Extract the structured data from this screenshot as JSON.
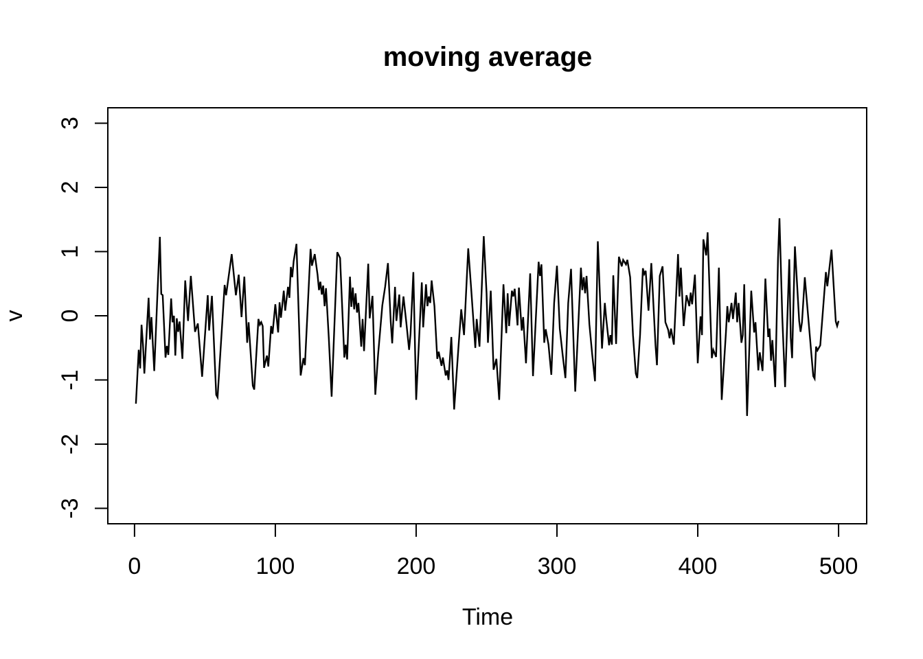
{
  "figure": {
    "background": "#ffffff",
    "foreground": "#000000"
  },
  "chart_data": {
    "type": "line",
    "title": "moving average",
    "xlabel": "Time",
    "ylabel": "v",
    "grid": false,
    "legend": "none",
    "line_color": "#000000",
    "xlim": [
      1,
      500
    ],
    "ylim": [
      -3,
      3
    ],
    "x_ticks": [
      0,
      100,
      200,
      300,
      400,
      500
    ],
    "y_ticks": [
      -3,
      -2,
      -1,
      0,
      1,
      2,
      3
    ],
    "series": [
      {
        "name": "v",
        "points": [
          [
            1,
            -1.37
          ],
          [
            3,
            -0.53
          ],
          [
            4,
            -0.82
          ],
          [
            5,
            -0.14
          ],
          [
            6,
            -0.45
          ],
          [
            7,
            -0.9
          ],
          [
            10,
            0.28
          ],
          [
            11,
            -0.37
          ],
          [
            12,
            -0.02
          ],
          [
            14,
            -0.86
          ],
          [
            16,
            0.2
          ],
          [
            18,
            1.23
          ],
          [
            19,
            0.34
          ],
          [
            20,
            0.32
          ],
          [
            22,
            -0.65
          ],
          [
            23,
            -0.47
          ],
          [
            24,
            -0.61
          ],
          [
            26,
            0.27
          ],
          [
            27,
            -0.1
          ],
          [
            28,
            0.0
          ],
          [
            29,
            -0.62
          ],
          [
            30,
            -0.04
          ],
          [
            31,
            -0.25
          ],
          [
            32,
            -0.09
          ],
          [
            34,
            -0.67
          ],
          [
            36,
            0.55
          ],
          [
            38,
            -0.08
          ],
          [
            40,
            0.62
          ],
          [
            43,
            -0.25
          ],
          [
            45,
            -0.12
          ],
          [
            48,
            -0.95
          ],
          [
            52,
            0.32
          ],
          [
            53,
            -0.23
          ],
          [
            55,
            0.31
          ],
          [
            58,
            -1.23
          ],
          [
            59,
            -1.27
          ],
          [
            64,
            0.48
          ],
          [
            65,
            0.32
          ],
          [
            69,
            0.96
          ],
          [
            72,
            0.32
          ],
          [
            74,
            0.64
          ],
          [
            76,
            -0.02
          ],
          [
            78,
            0.61
          ],
          [
            80,
            -0.42
          ],
          [
            81,
            -0.1
          ],
          [
            84,
            -1.09
          ],
          [
            85,
            -1.15
          ],
          [
            88,
            -0.05
          ],
          [
            89,
            -0.14
          ],
          [
            90,
            -0.1
          ],
          [
            91,
            -0.16
          ],
          [
            92,
            -0.81
          ],
          [
            94,
            -0.62
          ],
          [
            95,
            -0.79
          ],
          [
            97,
            -0.16
          ],
          [
            98,
            -0.28
          ],
          [
            100,
            0.18
          ],
          [
            102,
            -0.26
          ],
          [
            103,
            0.21
          ],
          [
            104,
            -0.03
          ],
          [
            106,
            0.39
          ],
          [
            107,
            0.08
          ],
          [
            109,
            0.45
          ],
          [
            110,
            0.28
          ],
          [
            111,
            0.76
          ],
          [
            112,
            0.6
          ],
          [
            113,
            0.85
          ],
          [
            115,
            1.12
          ],
          [
            118,
            -0.93
          ],
          [
            120,
            -0.66
          ],
          [
            121,
            -0.77
          ],
          [
            125,
            1.04
          ],
          [
            126,
            0.78
          ],
          [
            128,
            0.96
          ],
          [
            130,
            0.64
          ],
          [
            131,
            0.4
          ],
          [
            132,
            0.53
          ],
          [
            133,
            0.33
          ],
          [
            134,
            0.47
          ],
          [
            135,
            0.15
          ],
          [
            136,
            0.43
          ],
          [
            138,
            -0.35
          ],
          [
            140,
            -1.26
          ],
          [
            144,
            0.99
          ],
          [
            146,
            0.9
          ],
          [
            149,
            -0.65
          ],
          [
            150,
            -0.45
          ],
          [
            151,
            -0.68
          ],
          [
            153,
            0.61
          ],
          [
            154,
            0.14
          ],
          [
            155,
            0.44
          ],
          [
            156,
            0.1
          ],
          [
            157,
            0.35
          ],
          [
            158,
            0.05
          ],
          [
            159,
            0.2
          ],
          [
            161,
            -0.48
          ],
          [
            162,
            -0.05
          ],
          [
            163,
            -0.55
          ],
          [
            166,
            0.81
          ],
          [
            167,
            -0.04
          ],
          [
            169,
            0.31
          ],
          [
            171,
            -1.23
          ],
          [
            173,
            -0.6
          ],
          [
            176,
            0.16
          ],
          [
            178,
            0.45
          ],
          [
            180,
            0.82
          ],
          [
            182,
            -0.1
          ],
          [
            183,
            -0.43
          ],
          [
            185,
            0.45
          ],
          [
            186,
            -0.08
          ],
          [
            188,
            0.33
          ],
          [
            189,
            -0.18
          ],
          [
            191,
            0.3
          ],
          [
            193,
            -0.1
          ],
          [
            195,
            -0.53
          ],
          [
            196,
            -0.28
          ],
          [
            198,
            0.68
          ],
          [
            200,
            -1.31
          ],
          [
            204,
            0.52
          ],
          [
            205,
            -0.18
          ],
          [
            207,
            0.49
          ],
          [
            208,
            0.15
          ],
          [
            209,
            0.3
          ],
          [
            210,
            0.2
          ],
          [
            211,
            0.55
          ],
          [
            213,
            0.15
          ],
          [
            215,
            -0.67
          ],
          [
            216,
            -0.56
          ],
          [
            218,
            -0.78
          ],
          [
            219,
            -0.65
          ],
          [
            221,
            -0.93
          ],
          [
            222,
            -0.85
          ],
          [
            223,
            -1.0
          ],
          [
            225,
            -0.33
          ],
          [
            227,
            -1.46
          ],
          [
            230,
            -0.5
          ],
          [
            232,
            0.1
          ],
          [
            234,
            -0.3
          ],
          [
            237,
            1.05
          ],
          [
            239,
            0.45
          ],
          [
            242,
            -0.5
          ],
          [
            243,
            -0.05
          ],
          [
            245,
            -0.48
          ],
          [
            248,
            1.24
          ],
          [
            250,
            0.35
          ],
          [
            251,
            -0.42
          ],
          [
            253,
            0.39
          ],
          [
            255,
            -0.84
          ],
          [
            257,
            -0.67
          ],
          [
            259,
            -1.31
          ],
          [
            262,
            0.49
          ],
          [
            264,
            -0.27
          ],
          [
            265,
            0.35
          ],
          [
            266,
            -0.16
          ],
          [
            268,
            0.39
          ],
          [
            269,
            0.3
          ],
          [
            270,
            0.42
          ],
          [
            272,
            -0.15
          ],
          [
            273,
            0.44
          ],
          [
            275,
            -0.23
          ],
          [
            276,
            -0.02
          ],
          [
            278,
            -0.74
          ],
          [
            281,
            0.66
          ],
          [
            283,
            -0.94
          ],
          [
            287,
            0.84
          ],
          [
            288,
            0.62
          ],
          [
            289,
            0.8
          ],
          [
            291,
            -0.42
          ],
          [
            292,
            -0.21
          ],
          [
            294,
            -0.45
          ],
          [
            296,
            -0.92
          ],
          [
            298,
            0.2
          ],
          [
            300,
            0.78
          ],
          [
            302,
            -0.2
          ],
          [
            304,
            -0.6
          ],
          [
            306,
            -0.97
          ],
          [
            308,
            0.2
          ],
          [
            310,
            0.73
          ],
          [
            313,
            -1.18
          ],
          [
            317,
            0.75
          ],
          [
            318,
            0.4
          ],
          [
            319,
            0.6
          ],
          [
            320,
            0.35
          ],
          [
            321,
            0.62
          ],
          [
            323,
            -0.13
          ],
          [
            325,
            -0.6
          ],
          [
            327,
            -1.02
          ],
          [
            329,
            1.16
          ],
          [
            332,
            -0.51
          ],
          [
            334,
            0.2
          ],
          [
            335,
            -0.05
          ],
          [
            337,
            -0.46
          ],
          [
            338,
            -0.3
          ],
          [
            339,
            -0.45
          ],
          [
            340,
            0.63
          ],
          [
            342,
            -0.44
          ],
          [
            344,
            0.92
          ],
          [
            346,
            0.77
          ],
          [
            347,
            0.87
          ],
          [
            349,
            0.8
          ],
          [
            350,
            0.87
          ],
          [
            352,
            0.6
          ],
          [
            354,
            -0.3
          ],
          [
            356,
            -0.9
          ],
          [
            357,
            -0.97
          ],
          [
            359,
            -0.3
          ],
          [
            361,
            0.74
          ],
          [
            362,
            0.65
          ],
          [
            363,
            0.7
          ],
          [
            365,
            0.08
          ],
          [
            367,
            0.82
          ],
          [
            370,
            -0.46
          ],
          [
            371,
            -0.77
          ],
          [
            373,
            0.62
          ],
          [
            375,
            0.77
          ],
          [
            377,
            -0.1
          ],
          [
            379,
            -0.22
          ],
          [
            380,
            -0.35
          ],
          [
            381,
            -0.2
          ],
          [
            383,
            -0.45
          ],
          [
            386,
            0.96
          ],
          [
            387,
            0.3
          ],
          [
            388,
            0.75
          ],
          [
            390,
            -0.16
          ],
          [
            392,
            0.32
          ],
          [
            394,
            0.15
          ],
          [
            395,
            0.36
          ],
          [
            396,
            0.18
          ],
          [
            398,
            0.64
          ],
          [
            400,
            -0.74
          ],
          [
            402,
            -0.01
          ],
          [
            403,
            -0.3
          ],
          [
            404,
            1.19
          ],
          [
            406,
            0.94
          ],
          [
            407,
            1.3
          ],
          [
            410,
            -0.66
          ],
          [
            411,
            -0.53
          ],
          [
            413,
            -0.64
          ],
          [
            415,
            0.75
          ],
          [
            417,
            -1.31
          ],
          [
            420,
            -0.27
          ],
          [
            421,
            0.15
          ],
          [
            422,
            -0.1
          ],
          [
            424,
            0.2
          ],
          [
            425,
            -0.05
          ],
          [
            427,
            0.36
          ],
          [
            428,
            -0.1
          ],
          [
            429,
            0.2
          ],
          [
            431,
            -0.42
          ],
          [
            432,
            -0.3
          ],
          [
            433,
            0.49
          ],
          [
            435,
            -1.56
          ],
          [
            438,
            0.39
          ],
          [
            440,
            -0.26
          ],
          [
            441,
            -0.1
          ],
          [
            443,
            -0.85
          ],
          [
            444,
            -0.57
          ],
          [
            446,
            -0.86
          ],
          [
            448,
            0.58
          ],
          [
            450,
            -0.33
          ],
          [
            451,
            -0.2
          ],
          [
            452,
            -0.7
          ],
          [
            453,
            -0.38
          ],
          [
            455,
            -1.11
          ],
          [
            457,
            0.9
          ],
          [
            458,
            1.52
          ],
          [
            460,
            -0.02
          ],
          [
            462,
            -1.11
          ],
          [
            465,
            0.88
          ],
          [
            466,
            -0.34
          ],
          [
            467,
            -0.66
          ],
          [
            469,
            1.08
          ],
          [
            472,
            -0.08
          ],
          [
            473,
            -0.25
          ],
          [
            474,
            -0.1
          ],
          [
            476,
            0.6
          ],
          [
            482,
            -0.94
          ],
          [
            483,
            -0.98
          ],
          [
            484,
            -0.48
          ],
          [
            485,
            -0.54
          ],
          [
            487,
            -0.46
          ],
          [
            491,
            0.68
          ],
          [
            492,
            0.46
          ],
          [
            495,
            1.03
          ],
          [
            498,
            -0.09
          ],
          [
            499,
            -0.16
          ],
          [
            500,
            -0.08
          ]
        ]
      }
    ]
  }
}
